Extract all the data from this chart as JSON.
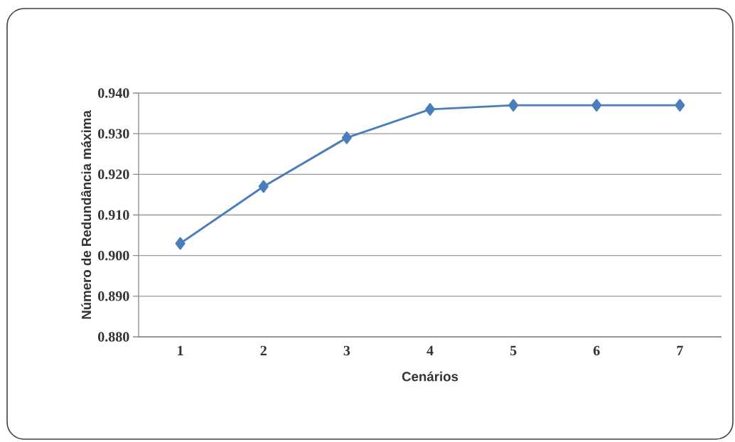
{
  "chart_data": {
    "type": "line",
    "xlabel": "Cenários",
    "ylabel": "Número de Redundância máxima",
    "categories": [
      "1",
      "2",
      "3",
      "4",
      "5",
      "6",
      "7"
    ],
    "series": [
      {
        "color": "#4a7ebb",
        "values": [
          0.903,
          0.917,
          0.929,
          0.936,
          0.937,
          0.937,
          0.937
        ]
      }
    ],
    "ylim": [
      0.88,
      0.94
    ],
    "yticks": [
      {
        "value": 0.88,
        "label": "0.880"
      },
      {
        "value": 0.89,
        "label": "0.890"
      },
      {
        "value": 0.9,
        "label": "0.900"
      },
      {
        "value": 0.91,
        "label": "0.910"
      },
      {
        "value": 0.92,
        "label": "0.920"
      },
      {
        "value": 0.93,
        "label": "0.930"
      },
      {
        "value": 0.94,
        "label": "0.940"
      }
    ],
    "grid": "y",
    "marker": "diamond",
    "line_style": "solid"
  }
}
